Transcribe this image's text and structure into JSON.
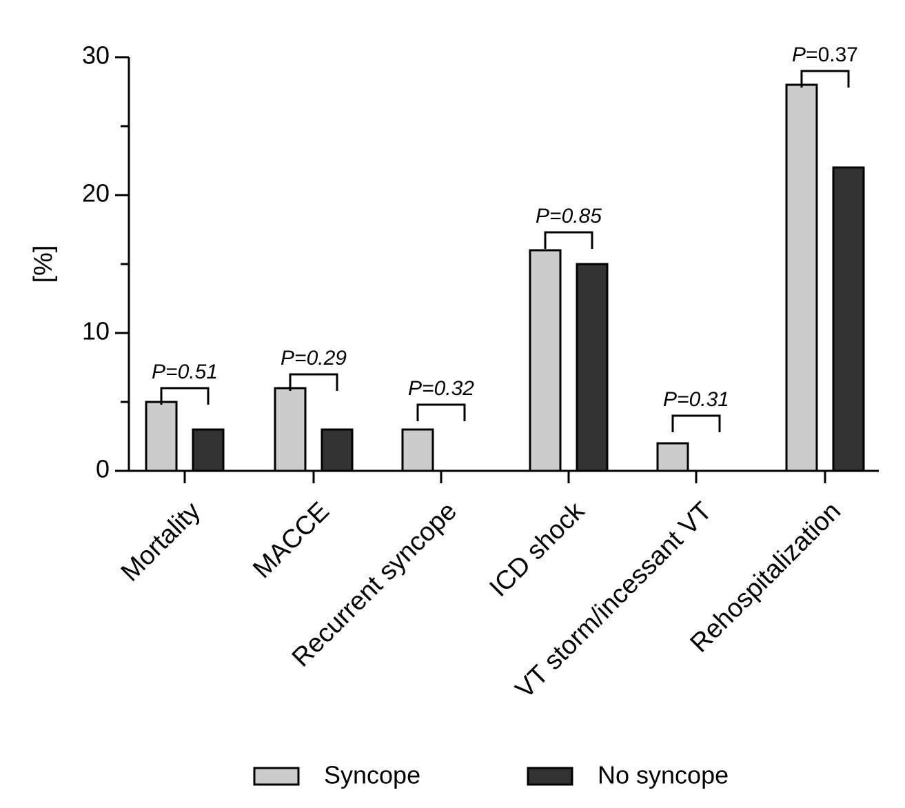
{
  "chart_data": {
    "type": "bar",
    "ylabel": "[%]",
    "xlabel": "",
    "ylim": [
      0,
      30
    ],
    "yticks": [
      0,
      10,
      20,
      30
    ],
    "categories": [
      "Mortality",
      "MACCE",
      "Recurrent syncope",
      "ICD shock",
      "VT storm/incessant VT",
      "Rehospitalization"
    ],
    "series": [
      {
        "name": "Syncope",
        "color": "#cccccc",
        "values": [
          5,
          6,
          3,
          16,
          2,
          28
        ]
      },
      {
        "name": "No syncope",
        "color": "#333333",
        "values": [
          3,
          3,
          0,
          15,
          0,
          22
        ]
      }
    ],
    "annotations": [
      {
        "prefix": "P",
        "value": "=0.51",
        "anchor": 6
      },
      {
        "prefix": "P",
        "value": "=0.29",
        "anchor": 7
      },
      {
        "prefix": "P",
        "value": "=0.32",
        "anchor": 4.8
      },
      {
        "prefix": "P",
        "value": "=0.85",
        "anchor": 17.3
      },
      {
        "prefix": "P",
        "value": "=0.31",
        "anchor": 4
      },
      {
        "prefix": "P",
        "value": "=0.37",
        "anchor": 29
      }
    ],
    "annotation_italic_value": [
      true,
      true,
      true,
      true,
      true,
      false
    ],
    "grid": false,
    "legend_position": "bottom"
  }
}
